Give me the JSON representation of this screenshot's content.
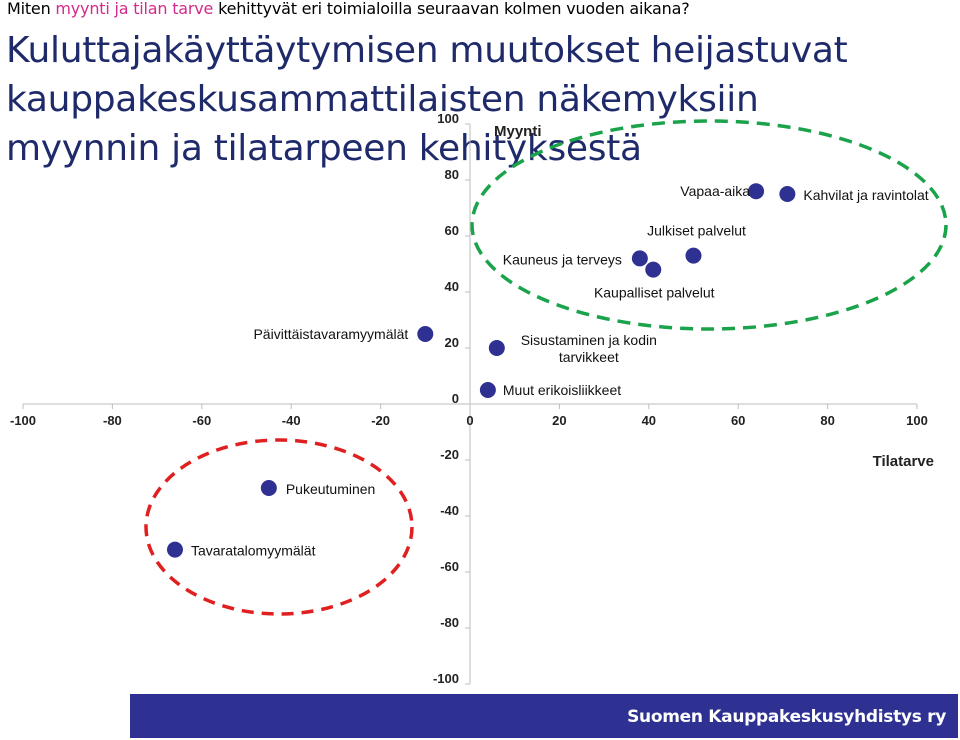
{
  "question": {
    "prefix": "Miten ",
    "highlight": "myynti ja tilan tarve",
    "suffix": " kehittyvät eri toimialoilla seuraavan kolmen vuoden aikana?"
  },
  "headline": "Kuluttajakäyttäytymisen muutokset heijastuvat kauppakeskusammattilaisten näkemyksiin myynnin ja tilatarpeen kehityksestä",
  "footer": {
    "text": "Suomen Kauppakeskusyhdistys ry"
  },
  "colors": {
    "marker": "#2e3192",
    "green_ellipse": "#1aa34a",
    "red_ellipse": "#e02020",
    "highlight": "#d42a8a",
    "headline": "#1f2a6b",
    "footer_bg": "#2e3192"
  },
  "chart_data": {
    "type": "scatter",
    "xlabel": "Tilatarve",
    "ylabel": "Myynti",
    "xlim": [
      -100,
      100
    ],
    "ylim": [
      -100,
      100
    ],
    "xticks": [
      -100,
      -80,
      -60,
      -40,
      -20,
      0,
      20,
      40,
      60,
      80,
      100
    ],
    "yticks": [
      100,
      80,
      60,
      40,
      20,
      0,
      -20,
      -40,
      -60,
      -80,
      -100
    ],
    "grid": false,
    "points": [
      {
        "label": "Vapaa-aika",
        "x": 64,
        "y": 76
      },
      {
        "label": "Kahvilat ja ravintolat",
        "x": 71,
        "y": 75
      },
      {
        "label": "Julkiset palvelut",
        "x": 50,
        "y": 53
      },
      {
        "label": "Kauneus ja terveys",
        "x": 38,
        "y": 52
      },
      {
        "label": "Kaupalliset palvelut",
        "x": 41,
        "y": 48
      },
      {
        "label": "Päivittäistavaramyymälät",
        "x": -10,
        "y": 25
      },
      {
        "label": "Sisustaminen ja kodin tarvikkeet",
        "x": 6,
        "y": 20
      },
      {
        "label": "Muut erikoisliikkeet",
        "x": 4,
        "y": 5
      },
      {
        "label": "Pukeutuminen",
        "x": -45,
        "y": -30
      },
      {
        "label": "Tavaratalomyymälät",
        "x": -66,
        "y": -52
      }
    ]
  }
}
